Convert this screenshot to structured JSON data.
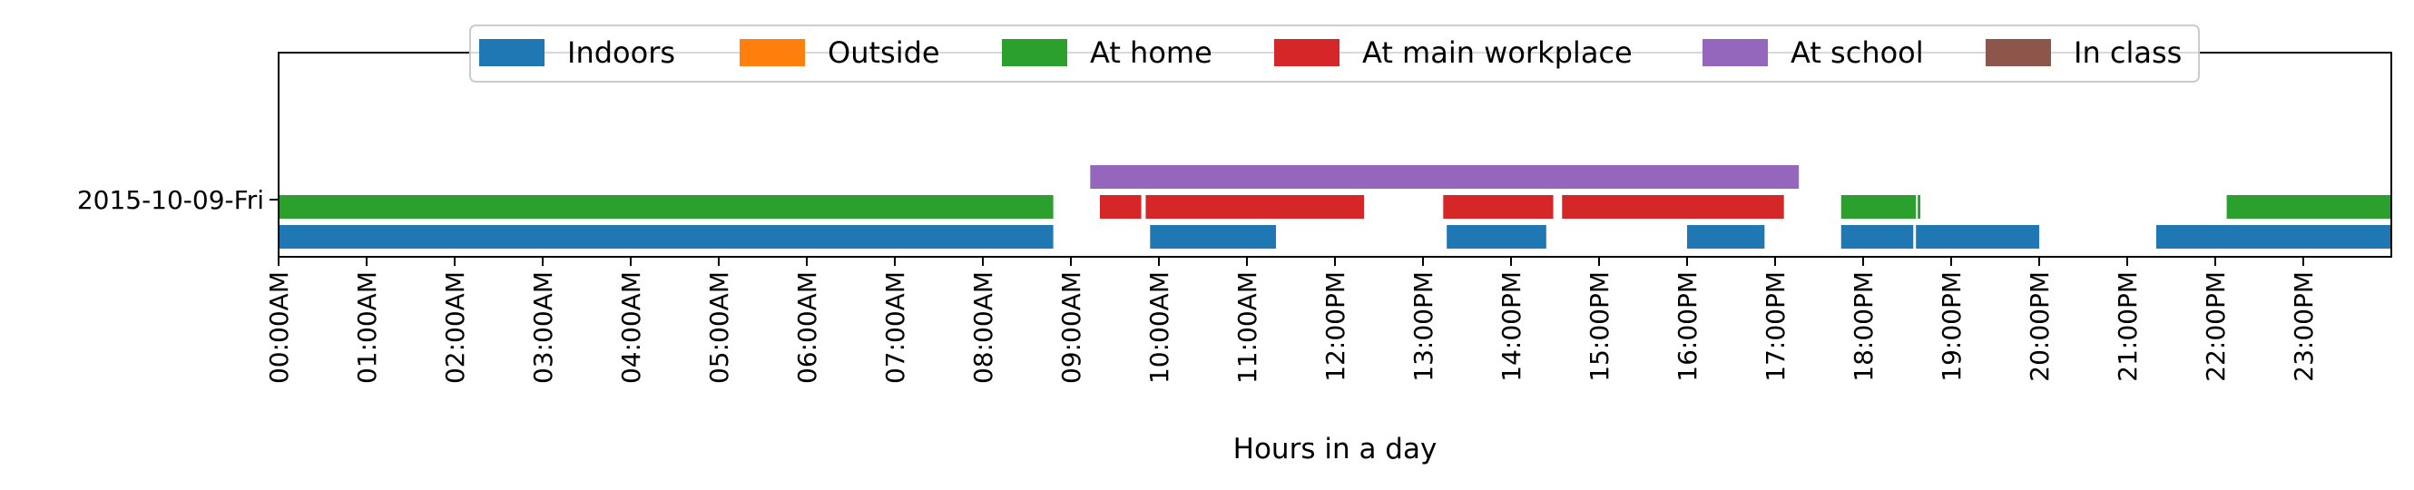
{
  "chart_data": {
    "type": "timeline",
    "title": "",
    "xlabel": "Hours in a day",
    "ylabel": "",
    "xlim": [
      0,
      24
    ],
    "x_ticks": [
      "00:00AM",
      "01:00AM",
      "02:00AM",
      "03:00AM",
      "04:00AM",
      "05:00AM",
      "06:00AM",
      "07:00AM",
      "08:00AM",
      "09:00AM",
      "10:00AM",
      "11:00AM",
      "12:00PM",
      "13:00PM",
      "14:00PM",
      "15:00PM",
      "16:00PM",
      "17:00PM",
      "18:00PM",
      "19:00PM",
      "20:00PM",
      "21:00PM",
      "22:00PM",
      "23:00PM"
    ],
    "y_ticks": [
      "2015-10-09-Fri"
    ],
    "legend_location": "top-center",
    "grid": false,
    "series": [
      {
        "name": "Indoors",
        "color": "#1f77b4",
        "lane": "bottom",
        "intervals": [
          [
            0.0,
            8.8
          ],
          [
            9.9,
            11.33
          ],
          [
            13.27,
            14.4
          ],
          [
            16.0,
            16.88
          ],
          [
            17.75,
            18.57
          ],
          [
            18.6,
            20.0
          ],
          [
            21.33,
            24.0
          ]
        ]
      },
      {
        "name": "Outside",
        "color": "#ff7f0e",
        "lane": "bottom",
        "intervals": []
      },
      {
        "name": "At home",
        "color": "#2ca02c",
        "lane": "middle",
        "intervals": [
          [
            0.0,
            8.8
          ],
          [
            17.75,
            18.6
          ],
          [
            18.62,
            18.65
          ],
          [
            22.13,
            24.0
          ]
        ]
      },
      {
        "name": "At main workplace",
        "color": "#d62728",
        "lane": "middle",
        "intervals": [
          [
            9.33,
            9.8
          ],
          [
            9.85,
            12.33
          ],
          [
            13.23,
            14.48
          ],
          [
            14.58,
            17.1
          ]
        ]
      },
      {
        "name": "At school",
        "color": "#9467bd",
        "lane": "top",
        "intervals": [
          [
            9.22,
            17.27
          ]
        ]
      },
      {
        "name": "In class",
        "color": "#8c564b",
        "lane": "top",
        "intervals": []
      }
    ]
  }
}
